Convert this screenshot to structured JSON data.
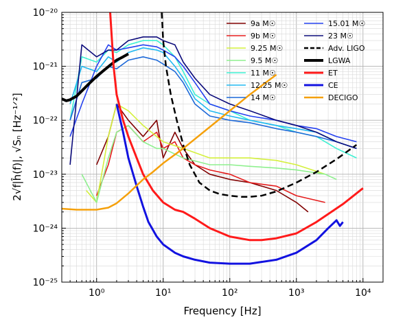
{
  "chart_data": {
    "type": "line",
    "xlabel": "Frequency [Hz]",
    "ylabel": "2√f|ĥ(f)|, √Sₙ [Hz⁻¹ᐟ²]",
    "x_scale": "log",
    "y_scale": "log",
    "xlim": [
      0.3,
      20000
    ],
    "ylim": [
      1e-25,
      1e-20
    ],
    "grid": true,
    "legend_position": "top-right",
    "x_ticks": [
      {
        "value": 1,
        "label": "10⁰"
      },
      {
        "value": 10,
        "label": "10¹"
      },
      {
        "value": 100,
        "label": "10²"
      },
      {
        "value": 1000,
        "label": "10³"
      },
      {
        "value": 10000,
        "label": "10⁴"
      }
    ],
    "y_ticks": [
      {
        "value": 1e-25,
        "label": "10⁻²⁵"
      },
      {
        "value": 1e-24,
        "label": "10⁻²⁴"
      },
      {
        "value": 1e-23,
        "label": "10⁻²³"
      },
      {
        "value": 1e-22,
        "label": "10⁻²²"
      },
      {
        "value": 1e-21,
        "label": "10⁻²¹"
      },
      {
        "value": 1e-20,
        "label": "10⁻²⁰"
      }
    ],
    "signals": [
      {
        "name": "9a M☉",
        "color": "#800000",
        "x": [
          1,
          1.5,
          2,
          3,
          5,
          8,
          10,
          15,
          20,
          30,
          50,
          100,
          200,
          500,
          1000,
          1500
        ],
        "y": [
          1.5e-23,
          5e-23,
          2e-22,
          1e-22,
          5e-23,
          1e-22,
          2e-23,
          6e-23,
          3e-23,
          1.5e-23,
          1e-23,
          8e-24,
          7e-24,
          5e-24,
          3e-24,
          2e-24
        ]
      },
      {
        "name": "9b M☉",
        "color": "#e51c1c",
        "x": [
          1,
          1.5,
          2,
          3,
          5,
          8,
          10,
          15,
          20,
          30,
          50,
          100,
          200,
          500,
          1000,
          2700
        ],
        "y": [
          4e-24,
          1.5e-23,
          6e-23,
          8e-23,
          4e-23,
          6e-23,
          3e-23,
          4e-23,
          2e-23,
          1.5e-23,
          1.2e-23,
          1e-23,
          7e-24,
          6e-24,
          4e-24,
          3e-24
        ]
      },
      {
        "name": "9.25 M☉",
        "color": "#d4f03c",
        "x": [
          0.7,
          1,
          1.5,
          2,
          3,
          5,
          8,
          10,
          20,
          50,
          100,
          200,
          500,
          1000,
          2700
        ],
        "y": [
          5e-24,
          3e-24,
          5e-23,
          2e-22,
          1.5e-22,
          8e-23,
          5e-23,
          4e-23,
          3e-23,
          2e-23,
          2e-23,
          2e-23,
          1.8e-23,
          1.5e-23,
          1e-23
        ]
      },
      {
        "name": "9.5 M☉",
        "color": "#8ef08e",
        "x": [
          0.6,
          1,
          1.5,
          2,
          3,
          5,
          8,
          10,
          20,
          50,
          100,
          200,
          500,
          1000,
          2700,
          4000
        ],
        "y": [
          1e-23,
          3e-24,
          2e-23,
          6e-23,
          8e-23,
          4e-23,
          3e-23,
          3e-23,
          2e-23,
          1.5e-23,
          1.5e-23,
          1.4e-23,
          1.3e-23,
          1.2e-23,
          1e-23,
          8e-24
        ]
      },
      {
        "name": "11 M☉",
        "color": "#3cf0d2",
        "x": [
          0.4,
          0.6,
          1,
          1.5,
          2,
          3,
          5,
          8,
          10,
          15,
          20,
          30,
          50,
          100,
          200,
          500,
          1000,
          2000,
          4000,
          8000
        ],
        "y": [
          1e-22,
          1.5e-21,
          1.2e-21,
          2e-21,
          1.8e-21,
          2.5e-21,
          3e-21,
          3e-21,
          2.5e-21,
          1.5e-21,
          8e-22,
          3e-22,
          2e-22,
          1.5e-22,
          1e-22,
          8e-23,
          6e-23,
          5e-23,
          3e-23,
          2e-23
        ]
      },
      {
        "name": "12.25 M☉",
        "color": "#20b8f0",
        "x": [
          0.4,
          0.6,
          1,
          1.5,
          2,
          3,
          5,
          8,
          10,
          15,
          20,
          30,
          50,
          100,
          200,
          500,
          1000,
          2000,
          4000,
          8000
        ],
        "y": [
          2e-22,
          1e-21,
          8e-22,
          1.5e-21,
          1.2e-21,
          1.8e-21,
          2.2e-21,
          2e-21,
          1.8e-21,
          1e-21,
          6e-22,
          2.5e-22,
          1.5e-22,
          1.2e-22,
          1e-22,
          8e-23,
          7e-23,
          6e-23,
          4e-23,
          3e-23
        ]
      },
      {
        "name": "14 M☉",
        "color": "#1c68d8",
        "x": [
          0.4,
          0.6,
          1,
          1.5,
          2,
          3,
          5,
          8,
          10,
          15,
          20,
          30,
          50,
          100,
          200,
          500,
          1000,
          2000,
          4000,
          8000
        ],
        "y": [
          1e-22,
          5e-22,
          6e-22,
          1e-21,
          9e-22,
          1.3e-21,
          1.5e-21,
          1.3e-21,
          1.1e-21,
          8e-22,
          5e-22,
          2e-22,
          1.2e-22,
          1e-22,
          9e-23,
          7e-23,
          6e-23,
          5e-23,
          4e-23,
          3e-23
        ]
      },
      {
        "name": "15.01 M☉",
        "color": "#2440f0",
        "x": [
          0.4,
          0.6,
          1,
          1.5,
          2,
          3,
          5,
          8,
          10,
          15,
          20,
          30,
          50,
          100,
          200,
          500,
          1000,
          2000,
          4000,
          8000
        ],
        "y": [
          5e-23,
          2e-22,
          1e-21,
          2.5e-21,
          2e-21,
          2.2e-21,
          2.5e-21,
          2.3e-21,
          2e-21,
          1.5e-21,
          1e-21,
          5e-22,
          2e-22,
          1.5e-22,
          1.2e-22,
          1e-22,
          8e-23,
          7e-23,
          5e-23,
          4e-23
        ]
      },
      {
        "name": "23 M☉",
        "color": "#0a0a7a",
        "x": [
          0.4,
          0.6,
          1,
          1.5,
          2,
          3,
          5,
          8,
          10,
          15,
          20,
          30,
          50,
          100,
          200,
          500,
          1000,
          2000,
          4000,
          8000
        ],
        "y": [
          1.5e-23,
          2.5e-21,
          1.5e-21,
          2e-21,
          2e-21,
          3e-21,
          3.5e-21,
          3.5e-21,
          3e-21,
          2.5e-21,
          1.2e-21,
          6e-22,
          3e-22,
          2e-22,
          1.5e-22,
          1e-22,
          8e-23,
          6e-23,
          4e-23,
          3e-23
        ]
      }
    ],
    "detectors": [
      {
        "name": "Adv. LIGO",
        "color": "#000000",
        "dashed": true,
        "width": 2.5,
        "x": [
          9.5,
          10,
          11,
          13,
          16,
          20,
          25,
          35,
          50,
          70,
          100,
          150,
          200,
          300,
          500,
          1000,
          2000,
          4000,
          8000
        ],
        "y": [
          1e-20,
          3e-21,
          1e-21,
          3e-22,
          1e-22,
          3.5e-23,
          1.5e-23,
          7e-24,
          5e-24,
          4.3e-24,
          4e-24,
          3.8e-24,
          3.8e-24,
          4e-24,
          4.8e-24,
          7e-24,
          1.1e-23,
          1.9e-23,
          3.5e-23
        ]
      },
      {
        "name": "LGWA",
        "color": "#000000",
        "dashed": false,
        "width": 4,
        "x": [
          0.3,
          0.35,
          0.4,
          0.5,
          0.6,
          0.8,
          1,
          1.3,
          1.6,
          2,
          2.5,
          3
        ],
        "y": [
          2.5e-22,
          2.3e-22,
          2.4e-22,
          2.8e-22,
          3.5e-22,
          5e-22,
          6.5e-22,
          8.5e-22,
          1.05e-21,
          1.3e-21,
          1.5e-21,
          1.7e-21
        ]
      },
      {
        "name": "ET",
        "color": "#ff1a1a",
        "dashed": false,
        "width": 3,
        "x": [
          1.6,
          1.8,
          2,
          2.5,
          3,
          4,
          5,
          7,
          10,
          15,
          20,
          30,
          50,
          100,
          200,
          300,
          500,
          1000,
          2000,
          5000,
          10000
        ],
        "y": [
          1e-20,
          1e-21,
          3e-22,
          1e-22,
          5e-23,
          2e-23,
          1e-23,
          5e-24,
          3e-24,
          2.2e-24,
          2e-24,
          1.5e-24,
          1e-24,
          7e-25,
          6e-25,
          6e-25,
          6.5e-25,
          8e-25,
          1.3e-24,
          2.8e-24,
          5.5e-24
        ]
      },
      {
        "name": "CE",
        "color": "#1212e0",
        "dashed": false,
        "width": 3,
        "x": [
          2,
          2.5,
          3,
          4,
          5,
          6,
          8,
          10,
          15,
          20,
          30,
          50,
          100,
          200,
          500,
          1000,
          2000,
          3000,
          4000,
          4500,
          5000
        ],
        "y": [
          2e-22,
          6e-23,
          2e-23,
          6e-24,
          2.5e-24,
          1.3e-24,
          7e-25,
          5e-25,
          3.5e-25,
          3e-25,
          2.6e-25,
          2.3e-25,
          2.2e-25,
          2.2e-25,
          2.6e-25,
          3.5e-25,
          6e-25,
          1e-24,
          1.4e-24,
          1.1e-24,
          1.3e-24
        ]
      },
      {
        "name": "DECIGO",
        "color": "#f5a00a",
        "dashed": false,
        "width": 2.5,
        "x": [
          0.3,
          0.5,
          1,
          1.5,
          2,
          3,
          5,
          7,
          10,
          20,
          50,
          100,
          200,
          500
        ],
        "y": [
          2.3e-24,
          2.2e-24,
          2.2e-24,
          2.4e-24,
          2.9e-24,
          4.4e-24,
          8e-24,
          1.1e-23,
          1.6e-23,
          3e-23,
          7.5e-23,
          1.5e-22,
          3e-22,
          7e-22
        ]
      }
    ]
  }
}
